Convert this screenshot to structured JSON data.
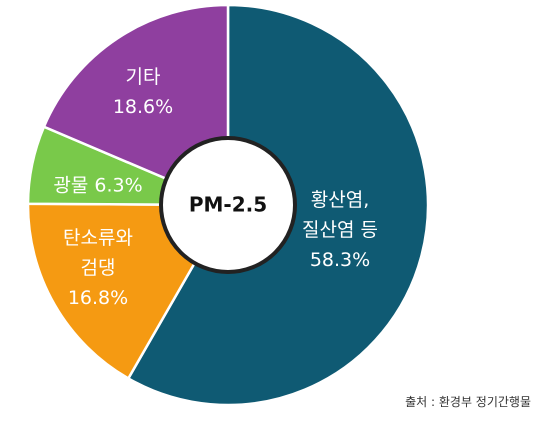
{
  "chart_data": {
    "type": "pie",
    "center_label": "PM-2.5",
    "slices": [
      {
        "label_lines": [
          "황산염,",
          "질산염 등"
        ],
        "value_label": "58.3%",
        "value": 58.3,
        "color": "#0f5a73"
      },
      {
        "label_lines": [
          "탄소류와",
          "검댕"
        ],
        "value_label": "16.8%",
        "value": 16.8,
        "color": "#f59a12"
      },
      {
        "label_lines": [
          "광물"
        ],
        "value_label": "6.3%",
        "value": 6.3,
        "color": "#79c94a"
      },
      {
        "label_lines": [
          "기타"
        ],
        "value_label": "18.6%",
        "value": 18.6,
        "color": "#8f3f9f"
      }
    ]
  },
  "source_note": "출처 : 환경부 정기간행물"
}
